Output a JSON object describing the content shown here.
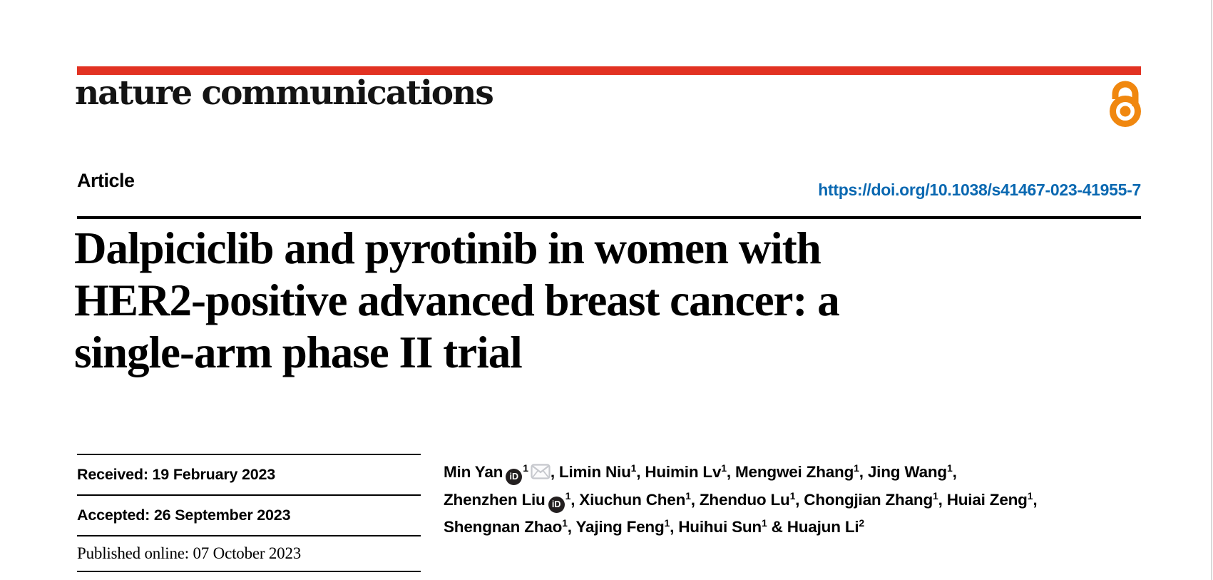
{
  "header": {
    "journal_name": "nature communications",
    "accent_color": "#e23222",
    "open_access_color": "#f0870f",
    "open_access_icon": "open-access-padlock"
  },
  "article_bar": {
    "type_label": "Article",
    "doi_text": "https://doi.org/10.1038/s41467-023-41955-7",
    "doi_color": "#0a68b1"
  },
  "title": {
    "line1": "Dalpiciclib and pyrotinib in women with",
    "line2": "HER2-positive advanced breast cancer: a",
    "line3": "single-arm phase II trial"
  },
  "history": {
    "items": [
      {
        "label": "Received:",
        "value": "19 February 2023",
        "style": "sans"
      },
      {
        "label": "Accepted:",
        "value": "26 September 2023",
        "style": "sans"
      },
      {
        "label": "Published online:",
        "value": "07 October 2023",
        "style": "serif"
      }
    ]
  },
  "authors": {
    "lines": [
      [
        {
          "name": "Min Yan",
          "orcid": true,
          "sup": "1",
          "email": true,
          "sep": ", "
        },
        {
          "name": "Limin Niu",
          "sup": "1",
          "sep": ", "
        },
        {
          "name": "Huimin Lv",
          "sup": "1",
          "sep": ", "
        },
        {
          "name": "Mengwei Zhang",
          "sup": "1",
          "sep": ", "
        },
        {
          "name": "Jing Wang",
          "sup": "1",
          "sep": ","
        }
      ],
      [
        {
          "name": "Zhenzhen Liu",
          "orcid": true,
          "sup": "1",
          "sep": ", "
        },
        {
          "name": "Xiuchun Chen",
          "sup": "1",
          "sep": ", "
        },
        {
          "name": "Zhenduo Lu",
          "sup": "1",
          "sep": ", "
        },
        {
          "name": "Chongjian Zhang",
          "sup": "1",
          "sep": ", "
        },
        {
          "name": "Huiai Zeng",
          "sup": "1",
          "sep": ","
        }
      ],
      [
        {
          "name": "Shengnan Zhao",
          "sup": "1",
          "sep": ", "
        },
        {
          "name": "Yajing Feng",
          "sup": "1",
          "sep": ", "
        },
        {
          "name": "Huihui Sun",
          "sup": "1",
          "sep": " & "
        },
        {
          "name": "Huajun Li",
          "sup": "2",
          "sep": ""
        }
      ]
    ]
  }
}
